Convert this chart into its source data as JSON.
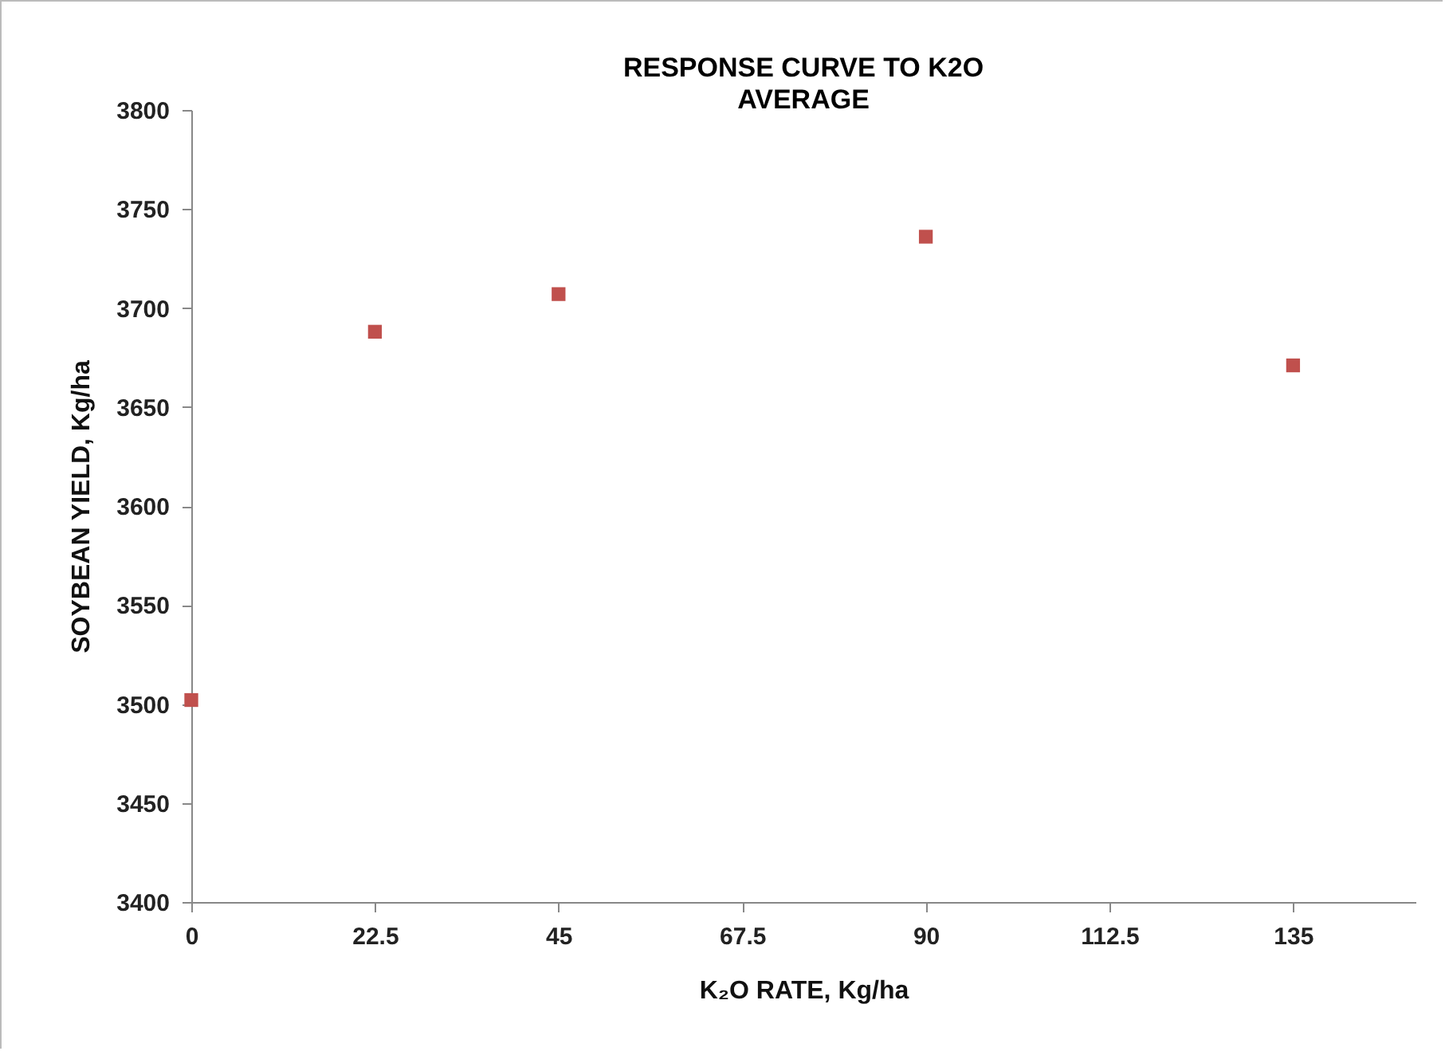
{
  "chart_data": {
    "type": "scatter",
    "title": "RESPONSE CURVE TO K2O",
    "subtitle": "AVERAGE",
    "xlabel": "K₂O RATE, Kg/ha",
    "ylabel": "SOYBEAN YIELD, Kg/ha",
    "x": [
      0,
      22.5,
      45,
      90,
      135
    ],
    "series": [
      {
        "color": "#c0504d",
        "values": [
          3502,
          3688,
          3707,
          3736,
          3671
        ]
      }
    ],
    "xlim": [
      0,
      150
    ],
    "xticks": [
      0,
      22.5,
      45,
      67.5,
      90,
      112.5,
      135
    ],
    "ylim": [
      3400,
      3800
    ],
    "yticks": [
      3400,
      3450,
      3500,
      3550,
      3600,
      3650,
      3700,
      3750,
      3800
    ],
    "grid": false,
    "marker": "square"
  }
}
